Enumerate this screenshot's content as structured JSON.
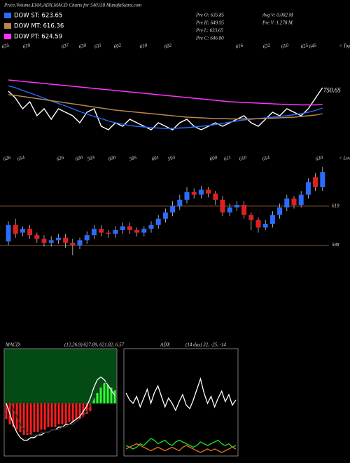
{
  "header": {
    "title": "Price,Volume,EMA,ADX,MACD Charts for 540158 MunafaSutra.com",
    "stats": [
      "Pre O: 635.85",
      "Pre H: 649.95",
      "Pre L: 633.65",
      "Pre C: 646.80",
      "Avg V: 0.002  M",
      "Pre  V: 1.278  M"
    ]
  },
  "chart_data": [
    {
      "type": "line",
      "ylim": [
        600,
        800
      ],
      "yticks": [
        750.65
      ],
      "side_label": "< Tops",
      "series": [
        {
          "color": "#ffffff",
          "values": [
            750,
            730,
            700,
            720,
            680,
            700,
            670,
            700,
            690,
            680,
            660,
            690,
            700,
            650,
            640,
            660,
            650,
            670,
            660,
            650,
            640,
            660,
            650,
            640,
            660,
            670,
            650,
            640,
            650,
            660,
            650,
            660,
            670,
            680,
            660,
            650,
            670,
            690,
            680,
            700,
            690,
            680,
            700,
            730,
            760
          ]
        },
        {
          "name": "DOW ST: 623.65",
          "color": "#2a6cff",
          "values": [
            765,
            760,
            752,
            745,
            738,
            730,
            722,
            715,
            708,
            700,
            692,
            685,
            678,
            672,
            665,
            660,
            656,
            652,
            650,
            648,
            646,
            645,
            644,
            644,
            645,
            646,
            648,
            650,
            652,
            655,
            658,
            662,
            665,
            668,
            670,
            672,
            674,
            676,
            678,
            680,
            683,
            686,
            690,
            695,
            702
          ]
        },
        {
          "name": "DOW MT: 616.36",
          "color": "#b8864b",
          "values": [
            740,
            738,
            735,
            732,
            729,
            726,
            723,
            720,
            717,
            714,
            711,
            708,
            705,
            702,
            699,
            696,
            694,
            692,
            690,
            688,
            686,
            684,
            682,
            680,
            678,
            676,
            675,
            674,
            673,
            672,
            672,
            671,
            671,
            671,
            671,
            672,
            672,
            673,
            674,
            675,
            676,
            678,
            680,
            682,
            686
          ]
        },
        {
          "name": "DOW PT: 624.59",
          "color": "#ff33ff",
          "values": [
            782,
            780,
            778,
            776,
            774,
            772,
            770,
            768,
            766,
            764,
            762,
            760,
            758,
            756,
            754,
            752,
            750,
            748,
            746,
            744,
            742,
            740,
            738,
            736,
            734,
            732,
            730,
            728,
            726,
            724,
            722,
            720,
            719,
            718,
            717,
            716,
            715,
            714,
            713,
            712,
            712,
            711,
            711,
            711,
            712
          ]
        }
      ]
    },
    {
      "type": "candlestick",
      "ylim": [
        560,
        660
      ],
      "yticks": [
        588,
        619
      ],
      "grid": true,
      "side_label": "< Lows",
      "up_color": "#2a6cff",
      "down_color": "#e02020",
      "high_labels": [
        "635",
        "619",
        "637",
        "630",
        "611",
        "602",
        "610",
        "602",
        "616",
        "632",
        "610",
        "625",
        "645"
      ],
      "low_labels": [
        "626",
        "614",
        "626",
        "600",
        "593",
        "600",
        "585",
        "601",
        "593",
        "600",
        "611",
        "610",
        "614",
        "630"
      ],
      "open": [
        591,
        604,
        598,
        601,
        596,
        593,
        590,
        592,
        594,
        590,
        588,
        592,
        596,
        601,
        598,
        597,
        600,
        603,
        600,
        598,
        601,
        604,
        609,
        614,
        619,
        624,
        630,
        628,
        632,
        629,
        624,
        614,
        618,
        620,
        612,
        608,
        602,
        605,
        612,
        618,
        625,
        620,
        628,
        642,
        634
      ],
      "high": [
        607,
        609,
        603,
        604,
        598,
        596,
        595,
        597,
        597,
        593,
        594,
        599,
        604,
        604,
        600,
        603,
        606,
        606,
        602,
        603,
        607,
        612,
        617,
        623,
        628,
        634,
        633,
        635,
        634,
        631,
        627,
        621,
        623,
        623,
        614,
        610,
        608,
        615,
        621,
        628,
        627,
        631,
        641,
        645,
        650
      ],
      "low": [
        588,
        594,
        595,
        593,
        590,
        587,
        587,
        589,
        586,
        580,
        585,
        589,
        593,
        595,
        594,
        594,
        597,
        597,
        595,
        595,
        598,
        601,
        606,
        611,
        616,
        621,
        625,
        625,
        626,
        620,
        611,
        611,
        615,
        609,
        600,
        598,
        600,
        602,
        609,
        615,
        617,
        618,
        625,
        631,
        631
      ],
      "close": [
        604,
        597,
        601,
        596,
        593,
        590,
        592,
        594,
        590,
        588,
        592,
        596,
        601,
        598,
        597,
        600,
        603,
        600,
        598,
        601,
        604,
        609,
        614,
        619,
        624,
        630,
        628,
        632,
        629,
        624,
        614,
        618,
        620,
        612,
        608,
        602,
        605,
        612,
        618,
        625,
        620,
        628,
        638,
        634,
        646
      ]
    },
    {
      "type": "macd",
      "title": "MACD:",
      "params": "(12,26,9) 627.89, 621.82, 6.57",
      "ylim": [
        -20,
        20
      ],
      "neg_color": "#ff2020",
      "pos_color": "#33ff33",
      "histogram": [
        -6,
        -8,
        -9,
        -10,
        -11,
        -12,
        -12,
        -12,
        -11,
        -11,
        -10,
        -10,
        -9,
        -9,
        -9,
        -8,
        -8,
        -8,
        -7,
        -7,
        -6,
        -6,
        -5,
        -4,
        -3,
        2,
        4,
        6,
        8,
        7,
        6,
        5
      ],
      "series": [
        {
          "color": "#ffffff",
          "values": [
            0,
            -4,
            -8,
            -11,
            -13,
            -14,
            -14,
            -13,
            -13,
            -12,
            -12,
            -11,
            -11,
            -10,
            -10,
            -9,
            -9,
            -8,
            -8,
            -7,
            -6,
            -5,
            -3,
            -1,
            2,
            6,
            9,
            10,
            9,
            7,
            5,
            3
          ]
        },
        {
          "color": "#333333",
          "values": [
            3,
            1,
            -2,
            -5,
            -8,
            -10,
            -11,
            -12,
            -12,
            -12,
            -11,
            -11,
            -11,
            -10,
            -10,
            -10,
            -9,
            -9,
            -8,
            -8,
            -7,
            -6,
            -5,
            -3,
            -1,
            2,
            5,
            7,
            8,
            8,
            7,
            5
          ]
        }
      ]
    },
    {
      "type": "adx",
      "title": "ADX",
      "params": "(14 day) 32, -25, -14",
      "ylim": [
        0,
        60
      ],
      "series": [
        {
          "color": "#ffffff",
          "values": [
            36,
            32,
            30,
            34,
            28,
            33,
            38,
            30,
            36,
            40,
            34,
            28,
            33,
            30,
            26,
            31,
            35,
            29,
            27,
            32,
            38,
            44,
            36,
            30,
            34,
            28,
            33,
            37,
            31,
            35,
            29,
            32
          ]
        },
        {
          "color": "#22dd22",
          "values": [
            6,
            5,
            4,
            5,
            7,
            6,
            8,
            10,
            9,
            7,
            8,
            9,
            7,
            6,
            8,
            9,
            8,
            7,
            6,
            5,
            6,
            8,
            7,
            6,
            7,
            8,
            9,
            7,
            6,
            7,
            5,
            6
          ]
        },
        {
          "color": "#e07020",
          "values": [
            4,
            5,
            6,
            7,
            6,
            5,
            4,
            3,
            4,
            5,
            4,
            3,
            4,
            5,
            4,
            3,
            5,
            6,
            5,
            4,
            3,
            2,
            3,
            4,
            3,
            4,
            3,
            2,
            3,
            4,
            5,
            4
          ]
        }
      ]
    }
  ]
}
